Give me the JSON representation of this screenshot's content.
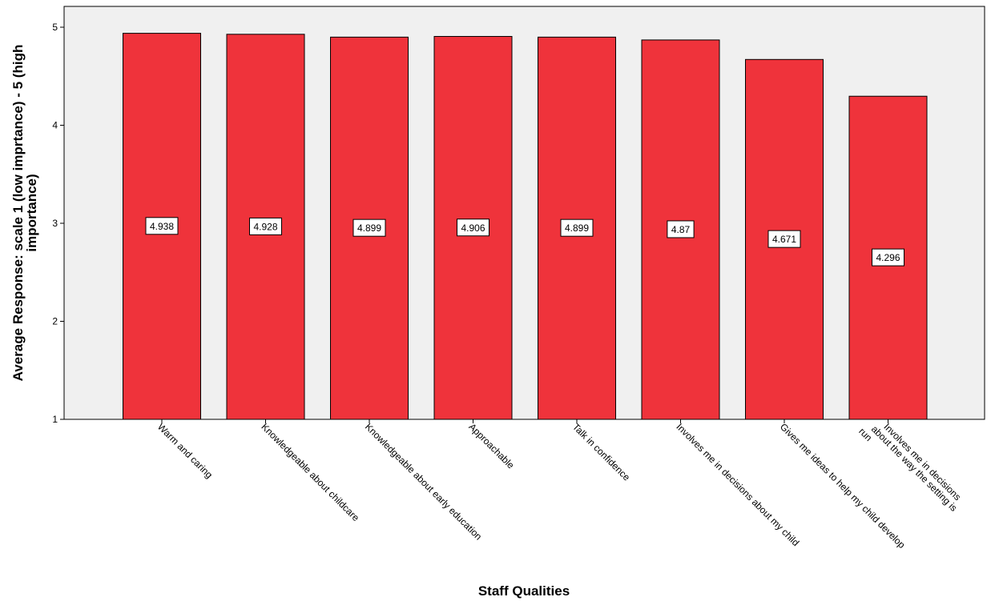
{
  "chart_data": {
    "type": "bar",
    "categories": [
      "Warm and caring",
      "Knowledgeable about childcare",
      "Knowledgeable about early education",
      "Approachable",
      "Talk in confidence",
      "Involves me in decisions about my child",
      "Gives me ideas to help my child develop",
      "Involves me in decisions about the way the setting is run"
    ],
    "category_lines": [
      [
        "Warm and caring"
      ],
      [
        "Knowledgeable about childcare"
      ],
      [
        "Knowledgeable about early education"
      ],
      [
        "Approachable"
      ],
      [
        "Talk in confidence"
      ],
      [
        "Involves me in decisions about my child"
      ],
      [
        "Gives me ideas to help my child develop"
      ],
      [
        "Involves me in decisions",
        "about the way the setting is",
        "run"
      ]
    ],
    "values": [
      4.938,
      4.928,
      4.899,
      4.906,
      4.899,
      4.87,
      4.671,
      4.296
    ],
    "value_labels": [
      "4.938",
      "4.928",
      "4.899",
      "4.906",
      "4.899",
      "4.87",
      "4.671",
      "4.296"
    ],
    "title": "",
    "xlabel": "Staff Qualities",
    "ylabel_lines": [
      "Average Response: scale 1 (low imprtance) - 5 (high",
      "importance)"
    ],
    "ylim": [
      1,
      5.2
    ],
    "yticks": [
      1,
      2,
      3,
      4,
      5
    ],
    "grid": false,
    "bar_color": "#ef333b",
    "plot_background": "#f0f0f0"
  }
}
